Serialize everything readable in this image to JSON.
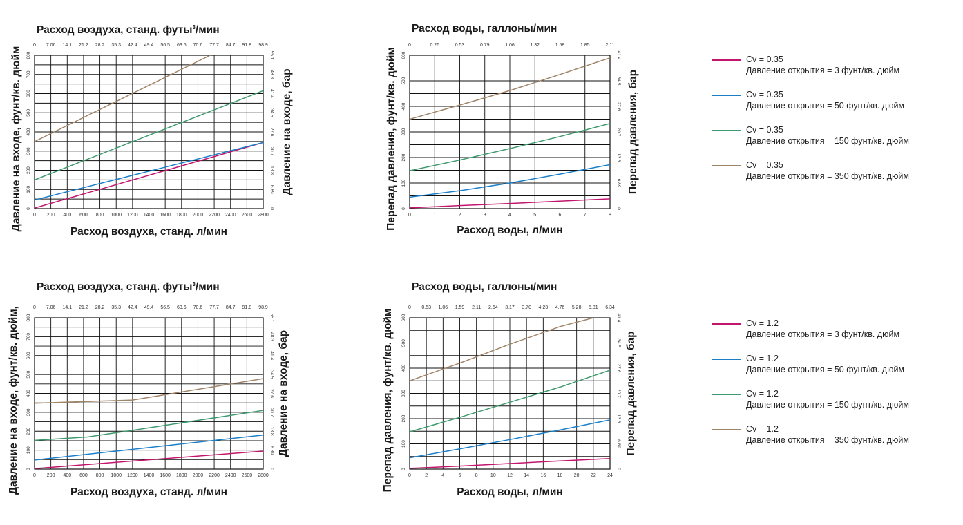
{
  "colors": {
    "magenta": "#c2166e",
    "blue": "#1a7fc9",
    "green": "#3e9a6e",
    "tan": "#a08468"
  },
  "chart_data": [
    {
      "type": "line",
      "title": "Расход воздуха, станд. футы³/мин",
      "xlabel": "Расход воздуха, станд. л/мин",
      "ylabel": "Давление на входе, фунт/кв. дюйм",
      "ylabel_right": "Давление на входе, бар",
      "xlim": [
        0,
        2800
      ],
      "ylim": [
        0,
        800
      ],
      "x_ticks": [
        "0",
        "200",
        "400",
        "600",
        "800",
        "1000",
        "1200",
        "1400",
        "1600",
        "1800",
        "2000",
        "2200",
        "2400",
        "2600",
        "2800"
      ],
      "y_ticks": [
        "0",
        "100",
        "200",
        "300",
        "400",
        "500",
        "600",
        "700",
        "800"
      ],
      "top_ticks": [
        "0",
        "7.06",
        "14.1",
        "21.2",
        "28.2",
        "35.3",
        "42.4",
        "49.4",
        "56.5",
        "63.6",
        "70.6",
        "77.7",
        "84.7",
        "91.8",
        "98.9"
      ],
      "right_ticks": [
        "0",
        "6.89",
        "13.8",
        "20.7",
        "27.6",
        "34.5",
        "41.4",
        "48.3",
        "55.1"
      ],
      "grid": true,
      "series": [
        {
          "color": "#c2166e",
          "x": [
            0,
            2800
          ],
          "y": [
            3,
            345
          ]
        },
        {
          "color": "#1a7fc9",
          "x": [
            0,
            2800
          ],
          "y": [
            45,
            345
          ]
        },
        {
          "color": "#3e9a6e",
          "x": [
            0,
            2800
          ],
          "y": [
            150,
            615
          ]
        },
        {
          "color": "#a08468",
          "x": [
            0,
            2150
          ],
          "y": [
            350,
            800
          ]
        }
      ]
    },
    {
      "type": "line",
      "title": "Расход воды, галлоны/мин",
      "xlabel": "Расход воды, л/мин",
      "ylabel": "Перепад давления, фунт/кв. дюйм",
      "ylabel_right": "Перепад давления, бар",
      "xlim": [
        0,
        8
      ],
      "ylim": [
        0,
        600
      ],
      "x_ticks": [
        "0",
        "1",
        "2",
        "3",
        "4",
        "5",
        "6",
        "7",
        "8"
      ],
      "y_ticks": [
        "0",
        "100",
        "200",
        "300",
        "400",
        "500",
        "600"
      ],
      "top_ticks": [
        "0",
        "0.26",
        "0.53",
        "0.79",
        "1.06",
        "1.32",
        "1.58",
        "1.85",
        "2.11"
      ],
      "right_ticks": [
        "0",
        "6.89",
        "13.8",
        "20.7",
        "27.6",
        "34.5",
        "41.4"
      ],
      "grid": true,
      "series": [
        {
          "color": "#c2166e",
          "x": [
            0,
            2,
            4,
            6,
            8
          ],
          "y": [
            3,
            12,
            20,
            29,
            38
          ]
        },
        {
          "color": "#1a7fc9",
          "x": [
            0,
            2,
            4,
            6,
            8
          ],
          "y": [
            45,
            70,
            100,
            135,
            172
          ]
        },
        {
          "color": "#3e9a6e",
          "x": [
            0,
            2,
            4,
            6,
            8
          ],
          "y": [
            148,
            190,
            235,
            282,
            333
          ]
        },
        {
          "color": "#a08468",
          "x": [
            0,
            2,
            4,
            6,
            8
          ],
          "y": [
            350,
            405,
            462,
            525,
            590
          ]
        }
      ]
    },
    {
      "type": "line",
      "title": "Расход воздуха, станд. футы³/мин",
      "xlabel": "Расход воздуха, станд. л/мин",
      "ylabel": "Давление на входе, фунт/кв. дюйм,",
      "ylabel_right": "Давление на входе, бар",
      "xlim": [
        0,
        2800
      ],
      "ylim": [
        0,
        800
      ],
      "x_ticks": [
        "0",
        "200",
        "400",
        "600",
        "800",
        "1000",
        "1200",
        "1400",
        "1600",
        "1800",
        "2000",
        "2200",
        "2400",
        "2600",
        "2800"
      ],
      "y_ticks": [
        "0",
        "100",
        "200",
        "300",
        "400",
        "500",
        "600",
        "700",
        "800"
      ],
      "top_ticks": [
        "0",
        "7.06",
        "14.1",
        "21.2",
        "28.2",
        "35.3",
        "42.4",
        "49.4",
        "56.5",
        "63.6",
        "70.6",
        "77.7",
        "84.7",
        "91.8",
        "98.9"
      ],
      "right_ticks": [
        "0",
        "6.89",
        "13.8",
        "20.7",
        "27.6",
        "34.5",
        "41.4",
        "48.3",
        "55.1"
      ],
      "grid": true,
      "series": [
        {
          "color": "#c2166e",
          "x": [
            0,
            2800
          ],
          "y": [
            3,
            95
          ]
        },
        {
          "color": "#1a7fc9",
          "x": [
            0,
            2800
          ],
          "y": [
            48,
            180
          ]
        },
        {
          "color": "#3e9a6e",
          "x": [
            0,
            650,
            1200,
            2800
          ],
          "y": [
            152,
            170,
            205,
            310
          ]
        },
        {
          "color": "#a08468",
          "x": [
            0,
            1200,
            2800
          ],
          "y": [
            348,
            365,
            478
          ]
        }
      ]
    },
    {
      "type": "line",
      "title": "Расход воды, галлоны/мин",
      "xlabel": "Расход воды, л/мин",
      "ylabel": "Перепад давления, фунт/кв. дюйм",
      "ylabel_right": "Перепад давления, бар",
      "xlim": [
        0,
        24
      ],
      "ylim": [
        0,
        600
      ],
      "x_ticks": [
        "0",
        "2",
        "4",
        "6",
        "8",
        "10",
        "12",
        "14",
        "16",
        "18",
        "20",
        "22",
        "24"
      ],
      "y_ticks": [
        "0",
        "100",
        "200",
        "300",
        "400",
        "500",
        "600"
      ],
      "top_ticks": [
        "0",
        "0.53",
        "1.06",
        "1.59",
        "2.11",
        "2.64",
        "3.17",
        "3.70",
        "4.23",
        "4.76",
        "5.28",
        "5.81",
        "6.34"
      ],
      "right_ticks": [
        "0",
        "6.89",
        "13.8",
        "20.7",
        "27.6",
        "34.5",
        "41.4"
      ],
      "grid": true,
      "series": [
        {
          "color": "#c2166e",
          "x": [
            0,
            6,
            12,
            18,
            24
          ],
          "y": [
            3,
            12,
            22,
            32,
            42
          ]
        },
        {
          "color": "#1a7fc9",
          "x": [
            0,
            6,
            12,
            18,
            24
          ],
          "y": [
            45,
            80,
            117,
            155,
            195
          ]
        },
        {
          "color": "#3e9a6e",
          "x": [
            0,
            6,
            12,
            18,
            24
          ],
          "y": [
            148,
            205,
            265,
            325,
            392
          ]
        },
        {
          "color": "#a08468",
          "x": [
            0,
            6,
            12,
            18,
            22
          ],
          "y": [
            350,
            420,
            495,
            565,
            600
          ]
        }
      ]
    }
  ],
  "legends": [
    {
      "items": [
        {
          "color": "#c2166e",
          "line1": "Cv = 0.35",
          "line2": "Давление открытия = 3 фунт/кв. дюйм"
        },
        {
          "color": "#1a7fc9",
          "line1": "Cv = 0.35",
          "line2": "Давление открытия = 50 фунт/кв. дюйм"
        },
        {
          "color": "#3e9a6e",
          "line1": "Cv = 0.35",
          "line2": "Давление открытия = 150 фунт/кв. дюйм"
        },
        {
          "color": "#a08468",
          "line1": "Cv = 0.35",
          "line2": "Давление открытия = 350 фунт/кв. дюйм"
        }
      ]
    },
    {
      "items": [
        {
          "color": "#c2166e",
          "line1": "Cv = 1.2",
          "line2": "Давление открытия = 3 фунт/кв. дюйм"
        },
        {
          "color": "#1a7fc9",
          "line1": "Cv = 1.2",
          "line2": "Давление открытия = 50 фунт/кв. дюйм"
        },
        {
          "color": "#3e9a6e",
          "line1": "Cv = 1.2",
          "line2": "Давление открытия = 150 фунт/кв. дюйм"
        },
        {
          "color": "#a08468",
          "line1": "Cv = 1.2",
          "line2": "Давление открытия = 350 фунт/кв. дюйм"
        }
      ]
    }
  ]
}
